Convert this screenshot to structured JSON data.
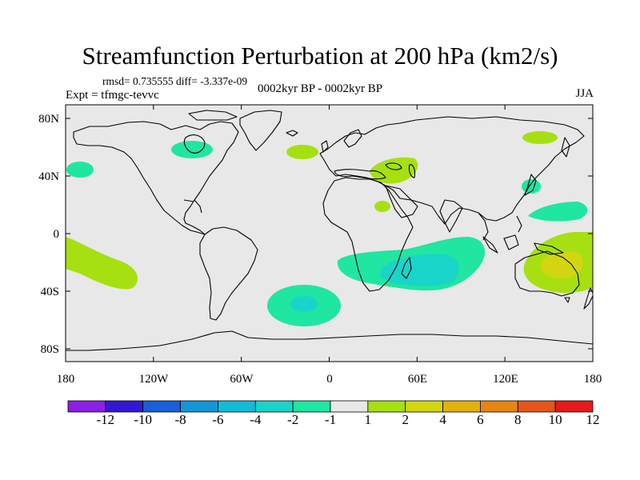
{
  "title": "Streamfunction Perturbation at 200 hPa (km2/s)",
  "stats_text": "rmsd= 0.735555 diff= -3.337e-09",
  "experiment": "Expt = tfmgc-tevvc",
  "period": "0002kyr BP - 0002kyr BP",
  "season": "JJA",
  "lat_ticks": [
    "80N",
    "40N",
    "0",
    "40S",
    "80S"
  ],
  "lon_ticks": [
    "180",
    "120W",
    "60W",
    "0",
    "60E",
    "120E",
    "180"
  ],
  "colorbar": {
    "labels": [
      "-12",
      "-10",
      "-8",
      "-6",
      "-4",
      "-2",
      "-1",
      "1",
      "2",
      "4",
      "6",
      "8",
      "10",
      "12"
    ],
    "colors": [
      "#8c1fe6",
      "#3218d6",
      "#1a5fd9",
      "#1496d9",
      "#12bcd8",
      "#19d4c8",
      "#1fe6a0",
      "#e8e8e8",
      "#a6e010",
      "#d2d610",
      "#e0b20e",
      "#e68512",
      "#e6561a",
      "#e61a1a"
    ]
  },
  "map": {
    "background_color": "#e8e8e8",
    "coastline_color": "#000000"
  }
}
